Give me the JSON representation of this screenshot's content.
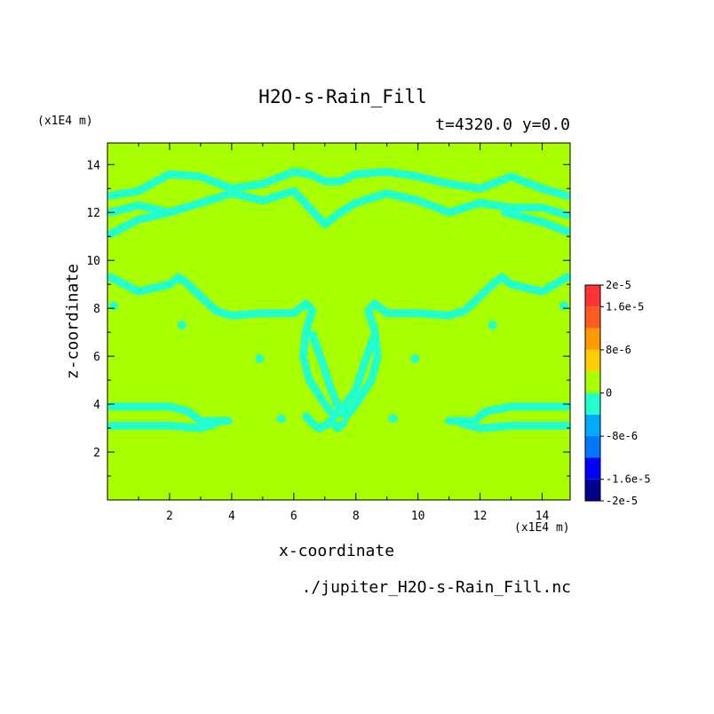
{
  "chart_data": {
    "type": "heatmap",
    "title": "H2O-s-Rain_Fill",
    "subtitle": "t=4320.0 y=0.0",
    "xlabel": "x-coordinate",
    "ylabel": "z-coordinate",
    "x_unit": "(x1E4 m)",
    "y_unit": "(x1E4 m)",
    "source": "./jupiter_H2O-s-Rain_Fill.nc",
    "xlim": [
      0,
      14.9
    ],
    "ylim": [
      0,
      14.9
    ],
    "xticks": [
      2,
      4,
      6,
      8,
      10,
      12,
      14
    ],
    "yticks": [
      2,
      4,
      6,
      8,
      10,
      12,
      14
    ],
    "background_level": "0",
    "colorbar": {
      "labels": [
        "2e-5",
        "1.6e-5",
        "8e-6",
        "0",
        "-8e-6",
        "-1.6e-5",
        "-2e-5"
      ],
      "levels": [
        2e-05,
        1.6e-05,
        8e-06,
        0,
        -8e-06,
        -1.6e-05,
        -2e-05
      ],
      "colors": [
        "#ff3535",
        "#ff5a1f",
        "#ff9a00",
        "#ffcc00",
        "#a8ff00",
        "#22ffcc",
        "#00aaff",
        "#0077ff",
        "#0000ff",
        "#000090"
      ]
    },
    "contours": [
      {
        "level": "-8e-6..0",
        "color": "#22ffcc",
        "x": [
          0.1,
          1.0,
          2.0,
          3.0,
          4.0,
          5.0,
          6.0,
          6.5,
          7.0,
          7.5,
          8.0,
          9.0,
          10.0,
          11.0,
          12.0,
          13.0,
          14.0,
          14.8
        ],
        "y": [
          12.7,
          12.9,
          13.6,
          13.5,
          13.0,
          13.2,
          13.7,
          13.6,
          13.3,
          13.3,
          13.6,
          13.7,
          13.5,
          13.2,
          13.0,
          13.5,
          13.0,
          12.7
        ]
      },
      {
        "level": "-8e-6..0",
        "color": "#22ffcc",
        "x": [
          0.1,
          1.0,
          2.0,
          3.0,
          4.0,
          5.0,
          6.0,
          6.5,
          7.0,
          7.5,
          8.0,
          9.0,
          10.0,
          11.0,
          12.0,
          13.0,
          14.0,
          14.8
        ],
        "y": [
          12.0,
          12.3,
          12.0,
          12.4,
          12.8,
          12.5,
          12.9,
          12.2,
          11.5,
          12.0,
          12.4,
          12.8,
          12.5,
          12.0,
          12.4,
          12.2,
          12.2,
          11.9
        ]
      },
      {
        "level": "-8e-6..0",
        "color": "#22ffcc",
        "x": [
          0.1,
          1.0,
          2.0
        ],
        "y": [
          11.1,
          11.7,
          12.0
        ]
      },
      {
        "level": "-8e-6..0",
        "color": "#22ffcc",
        "x": [
          12.8,
          14.0,
          14.8
        ],
        "y": [
          12.0,
          11.6,
          11.2
        ]
      },
      {
        "level": "-8e-6..0",
        "color": "#22ffcc",
        "x": [
          0.1,
          1.0,
          2.0,
          2.3,
          2.6,
          3.0,
          3.5,
          4.0,
          5.0,
          6.0,
          6.4,
          6.6,
          6.4,
          6.3,
          6.5,
          7.0,
          7.3,
          7.5,
          8.0,
          8.3,
          8.6
        ],
        "y": [
          9.3,
          8.7,
          9.0,
          9.3,
          9.0,
          8.5,
          7.9,
          7.7,
          7.8,
          7.8,
          8.2,
          7.9,
          7.1,
          6.0,
          5.0,
          4.0,
          3.5,
          3.7,
          4.6,
          5.8,
          6.9
        ]
      },
      {
        "level": "-8e-6..0",
        "color": "#22ffcc",
        "x": [
          6.4,
          6.6,
          6.8,
          7.0,
          7.2,
          7.4,
          7.6
        ],
        "y": [
          3.5,
          3.2,
          3.0,
          3.1,
          3.3,
          3.0,
          3.2
        ]
      },
      {
        "level": "-8e-6..0",
        "color": "#22ffcc",
        "x": [
          14.8,
          14.0,
          13.0,
          12.7,
          12.4,
          12.0,
          11.5,
          11.0,
          10.0,
          9.0,
          8.6,
          8.4,
          8.6,
          8.7,
          8.5,
          8.0,
          7.7,
          7.5,
          7.2,
          6.9,
          6.6
        ],
        "y": [
          9.3,
          8.7,
          9.0,
          9.3,
          9.0,
          8.5,
          7.9,
          7.7,
          7.8,
          7.8,
          8.2,
          7.9,
          7.1,
          6.0,
          5.0,
          4.0,
          3.5,
          3.7,
          4.6,
          5.8,
          6.9
        ]
      },
      {
        "level": "-8e-6..0",
        "color": "#22ffcc",
        "x": [
          0.1,
          2.0,
          2.6,
          2.8,
          3.0,
          3.9
        ],
        "y": [
          3.9,
          3.9,
          3.7,
          3.5,
          3.3,
          3.3
        ]
      },
      {
        "level": "-8e-6..0",
        "color": "#22ffcc",
        "x": [
          0.1,
          2.0,
          3.0,
          3.5
        ],
        "y": [
          3.1,
          3.1,
          3.0,
          3.2
        ]
      },
      {
        "level": "-8e-6..0",
        "color": "#22ffcc",
        "x": [
          14.8,
          13.0,
          12.2,
          12.0,
          11.8,
          11.0
        ],
        "y": [
          3.9,
          3.9,
          3.7,
          3.5,
          3.3,
          3.3
        ]
      },
      {
        "level": "-8e-6..0",
        "color": "#22ffcc",
        "x": [
          14.8,
          13.0,
          12.0,
          11.4
        ],
        "y": [
          3.1,
          3.1,
          3.0,
          3.2
        ]
      }
    ],
    "spots": [
      {
        "x": 5.6,
        "y": 3.4,
        "color": "#22ffcc"
      },
      {
        "x": 9.2,
        "y": 3.4,
        "color": "#22ffcc"
      },
      {
        "x": 4.9,
        "y": 5.9,
        "color": "#22ffcc"
      },
      {
        "x": 9.9,
        "y": 5.9,
        "color": "#22ffcc"
      },
      {
        "x": 0.2,
        "y": 8.1,
        "color": "#22ffcc"
      },
      {
        "x": 14.7,
        "y": 8.1,
        "color": "#22ffcc"
      },
      {
        "x": 2.4,
        "y": 7.3,
        "color": "#22ffcc"
      },
      {
        "x": 12.4,
        "y": 7.3,
        "color": "#22ffcc"
      }
    ]
  }
}
